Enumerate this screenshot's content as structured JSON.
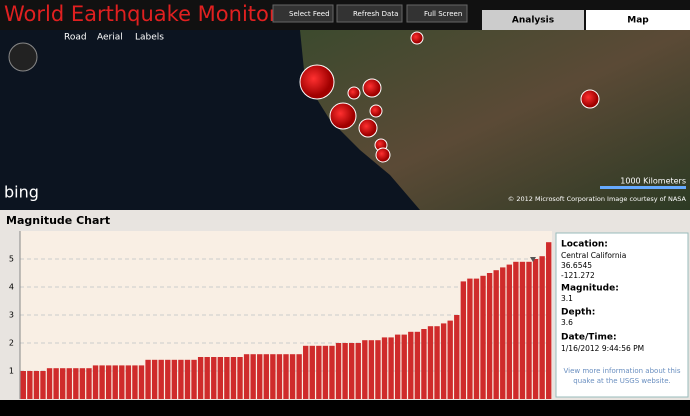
{
  "header": {
    "title": "World Earthquake Monitor",
    "buttons": [
      "Select Feed",
      "Refresh Data",
      "Full Screen"
    ],
    "tabs": [
      "Analysis",
      "Map"
    ]
  },
  "map": {
    "modes": [
      "Road",
      "Aerial",
      "Labels"
    ],
    "logo": "bing",
    "scale": "1000 Kilometers",
    "credit": "© 2012 Microsoft Corporation   Image courtesy of NASA"
  },
  "chart_data": {
    "type": "bar",
    "title": "Magnitude Chart",
    "color": "#cf2b2b",
    "values": [
      1.0,
      1.0,
      1.0,
      1.0,
      1.1,
      1.1,
      1.1,
      1.1,
      1.1,
      1.1,
      1.1,
      1.2,
      1.2,
      1.2,
      1.2,
      1.2,
      1.2,
      1.2,
      1.2,
      1.4,
      1.4,
      1.4,
      1.4,
      1.4,
      1.4,
      1.4,
      1.4,
      1.5,
      1.5,
      1.5,
      1.5,
      1.5,
      1.5,
      1.5,
      1.6,
      1.6,
      1.6,
      1.6,
      1.6,
      1.6,
      1.6,
      1.6,
      1.6,
      1.9,
      1.9,
      1.9,
      1.9,
      1.9,
      2.0,
      2.0,
      2.0,
      2.0,
      2.1,
      2.1,
      2.1,
      2.2,
      2.2,
      2.3,
      2.3,
      2.4,
      2.4,
      2.5,
      2.6,
      2.6,
      2.7,
      2.8,
      3.0,
      4.2,
      4.3,
      4.3,
      4.4,
      4.5,
      4.6,
      4.7,
      4.8,
      4.9,
      4.9,
      4.9,
      5.0,
      5.1,
      5.6
    ],
    "ylim": [
      0,
      6
    ],
    "yticks": [
      1,
      2,
      3,
      4,
      5
    ],
    "grid": true
  },
  "details": {
    "location_label": "Location:",
    "location": "Central California",
    "latitude": "36.6545",
    "longitude": "-121.272",
    "magnitude_label": "Magnitude:",
    "magnitude": "3.1",
    "depth_label": "Depth:",
    "depth": "3.6",
    "datetime_label": "Date/Time:",
    "datetime": "1/16/2012 9:44:56 PM",
    "link": [
      "View more information about this",
      "quake at the USGS website."
    ]
  }
}
